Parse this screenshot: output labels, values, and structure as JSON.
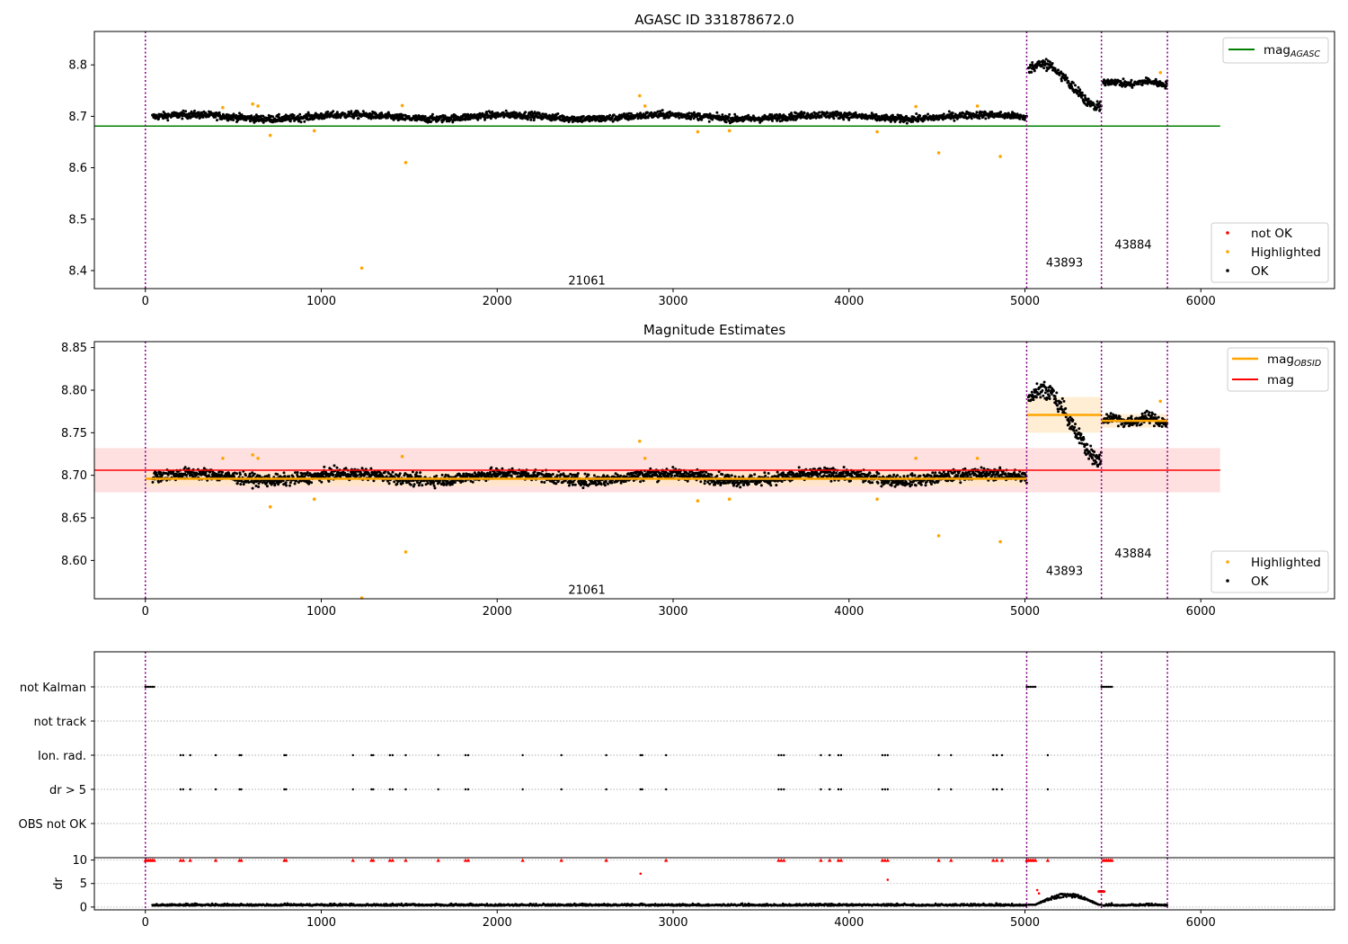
{
  "colors": {
    "ok": "#000000",
    "highlighted": "#ffa500",
    "not_ok": "#ff0000",
    "mag_agasc_line": "#008000",
    "mag_line": "#ff0000",
    "mag_band": "#ffcccc",
    "mag_obsid": "#ffa500",
    "obs_band": "#ffe7c2",
    "obs_boundary": "#800080",
    "grid": "#b0b0b0"
  },
  "chart_data": [
    {
      "type": "scatter",
      "title": "AGASC ID 331878672.0",
      "xlim": [
        -290,
        6760
      ],
      "ylim": [
        8.365,
        8.865
      ],
      "xticks": [
        0,
        1000,
        2000,
        3000,
        4000,
        5000,
        6000
      ],
      "yticks": [
        8.4,
        8.5,
        8.6,
        8.7,
        8.8
      ],
      "ytick_labels": [
        "8.4",
        "8.5",
        "8.6",
        "8.7",
        "8.8"
      ],
      "obs_boundaries": [
        0,
        5010,
        5435,
        5810
      ],
      "obs_labels": [
        {
          "text": "21061",
          "x": 2510,
          "y": 8.38
        },
        {
          "text": "43893",
          "x": 5225,
          "y": 8.415
        },
        {
          "text": "43884",
          "x": 5615,
          "y": 8.45
        }
      ],
      "hlines": [
        {
          "name": "mag_AGASC",
          "y": 8.681,
          "x": [
            -290,
            6110
          ]
        }
      ],
      "segments": [
        {
          "x": [
            40,
            5010
          ],
          "base": 8.699,
          "noise": 0.008,
          "wave": [
            0.004,
            900
          ]
        },
        {
          "x": [
            5020,
            5435
          ],
          "base": 8.772,
          "noise": 0.01,
          "wave": [
            0.028,
            500,
            -0.5
          ]
        },
        {
          "x": [
            5445,
            5810
          ],
          "base": 8.765,
          "noise": 0.008,
          "wave": [
            0.003,
            200
          ]
        }
      ],
      "highlighted_points": [
        [
          440,
          8.717
        ],
        [
          610,
          8.724
        ],
        [
          640,
          8.72
        ],
        [
          710,
          8.663
        ],
        [
          960,
          8.672
        ],
        [
          1230,
          8.405
        ],
        [
          1460,
          8.721
        ],
        [
          1480,
          8.61
        ],
        [
          2810,
          8.74
        ],
        [
          2840,
          8.72
        ],
        [
          3140,
          8.67
        ],
        [
          3320,
          8.672
        ],
        [
          4160,
          8.67
        ],
        [
          4380,
          8.719
        ],
        [
          4510,
          8.629
        ],
        [
          4730,
          8.72
        ],
        [
          4860,
          8.622
        ],
        [
          5770,
          8.785
        ]
      ],
      "legend_upper": [
        "mag",
        "AGASC"
      ],
      "legend_lower": [
        "not OK",
        "Highlighted",
        "OK"
      ]
    },
    {
      "type": "scatter",
      "title": "Magnitude Estimates",
      "xlim": [
        -290,
        6760
      ],
      "ylim": [
        8.555,
        8.857
      ],
      "xticks": [
        0,
        1000,
        2000,
        3000,
        4000,
        5000,
        6000
      ],
      "yticks": [
        8.6,
        8.65,
        8.7,
        8.75,
        8.8,
        8.85
      ],
      "ytick_labels": [
        "8.60",
        "8.65",
        "8.70",
        "8.75",
        "8.80",
        "8.85"
      ],
      "obs_boundaries": [
        0,
        5010,
        5435,
        5810
      ],
      "obs_labels": [
        {
          "text": "21061",
          "x": 2510,
          "y": 8.565
        },
        {
          "text": "43893",
          "x": 5225,
          "y": 8.587
        },
        {
          "text": "43884",
          "x": 5615,
          "y": 8.608
        }
      ],
      "mag_band": {
        "x": [
          -290,
          6110
        ],
        "lo": 8.68,
        "hi": 8.732,
        "mid": 8.706
      },
      "obsid_levels": [
        {
          "x": [
            0,
            5010
          ],
          "y": 8.696,
          "lo": 8.687,
          "hi": 8.704
        },
        {
          "x": [
            5010,
            5435
          ],
          "y": 8.771,
          "lo": 8.75,
          "hi": 8.792
        },
        {
          "x": [
            5435,
            5810
          ],
          "y": 8.764,
          "lo": 8.756,
          "hi": 8.772
        }
      ],
      "segments": [
        {
          "x": [
            40,
            5010
          ],
          "base": 8.698,
          "noise": 0.008,
          "wave": [
            0.004,
            900
          ]
        },
        {
          "x": [
            5020,
            5435
          ],
          "base": 8.772,
          "noise": 0.01,
          "wave": [
            0.028,
            500,
            -0.5
          ]
        },
        {
          "x": [
            5445,
            5810
          ],
          "base": 8.765,
          "noise": 0.008,
          "wave": [
            0.003,
            200
          ]
        }
      ],
      "highlighted_points": [
        [
          440,
          8.72
        ],
        [
          610,
          8.724
        ],
        [
          640,
          8.72
        ],
        [
          710,
          8.663
        ],
        [
          960,
          8.672
        ],
        [
          1230,
          8.556
        ],
        [
          1460,
          8.722
        ],
        [
          1480,
          8.61
        ],
        [
          2810,
          8.74
        ],
        [
          2840,
          8.72
        ],
        [
          3140,
          8.67
        ],
        [
          3320,
          8.672
        ],
        [
          4160,
          8.672
        ],
        [
          4380,
          8.72
        ],
        [
          4510,
          8.629
        ],
        [
          4730,
          8.72
        ],
        [
          4860,
          8.622
        ],
        [
          5770,
          8.787
        ]
      ],
      "legend_upper": [
        [
          "mag",
          "OBSID"
        ],
        "mag"
      ],
      "legend_lower": [
        "Highlighted",
        "OK"
      ]
    },
    {
      "type": "scatter",
      "xlim": [
        -290,
        6760
      ],
      "flag_labels": [
        "not Kalman",
        "not track",
        "Ion. rad.",
        "dr > 5",
        "OBS not OK"
      ],
      "obs_boundaries": [
        0,
        5010,
        5435,
        5810
      ],
      "not_kalman_x": [
        0,
        10,
        20,
        30,
        40,
        50,
        5010,
        5020,
        5030,
        5040,
        5050,
        5060,
        5435,
        5445,
        5455,
        5465,
        5475,
        5485,
        5495
      ],
      "ion_rad_x": [
        200,
        215,
        255,
        400,
        535,
        545,
        790,
        800,
        1180,
        1285,
        1295,
        1390,
        1405,
        1480,
        1665,
        1820,
        1835,
        2145,
        2365,
        2620,
        2815,
        2825,
        2960,
        3600,
        3615,
        3630,
        3840,
        3890,
        3940,
        3955,
        4190,
        4205,
        4220,
        4510,
        4580,
        4820,
        4840,
        4870,
        5130
      ],
      "dr_gt5_x": [
        200,
        215,
        255,
        400,
        535,
        545,
        790,
        800,
        1180,
        1285,
        1295,
        1390,
        1405,
        1480,
        1665,
        1820,
        1835,
        2145,
        2365,
        2620,
        2815,
        2825,
        2960,
        3600,
        3615,
        3630,
        3840,
        3890,
        3940,
        3955,
        4190,
        4205,
        4220,
        4510,
        4580,
        4820,
        4840,
        4870,
        5130
      ],
      "dr": {
        "ylabel": "dr",
        "ylim": [
          -0.6,
          10.5
        ],
        "yticks": [
          0,
          5,
          10
        ],
        "ytick_labels": [
          "0",
          "5",
          "10"
        ],
        "clipped_x": [
          0,
          10,
          20,
          30,
          40,
          50,
          200,
          215,
          255,
          400,
          535,
          545,
          790,
          800,
          1180,
          1285,
          1295,
          1390,
          1405,
          1480,
          1665,
          1820,
          1835,
          2145,
          2365,
          2620,
          2960,
          3600,
          3615,
          3630,
          3840,
          3890,
          3940,
          3955,
          4190,
          4205,
          4220,
          4510,
          4580,
          4820,
          4840,
          4870,
          5010,
          5020,
          5030,
          5040,
          5050,
          5060,
          5130,
          5445,
          5455,
          5465,
          5475,
          5485,
          5495
        ],
        "not_ok_points": [
          [
            2815,
            7.1
          ],
          [
            4220,
            5.8
          ],
          [
            5070,
            3.6
          ],
          [
            5080,
            2.9
          ]
        ],
        "ok_bump": {
          "x": [
            5060,
            5420
          ],
          "peak": 2.2
        },
        "high_block": {
          "x": [
            5420,
            5450
          ],
          "y": 3.3
        }
      }
    }
  ]
}
